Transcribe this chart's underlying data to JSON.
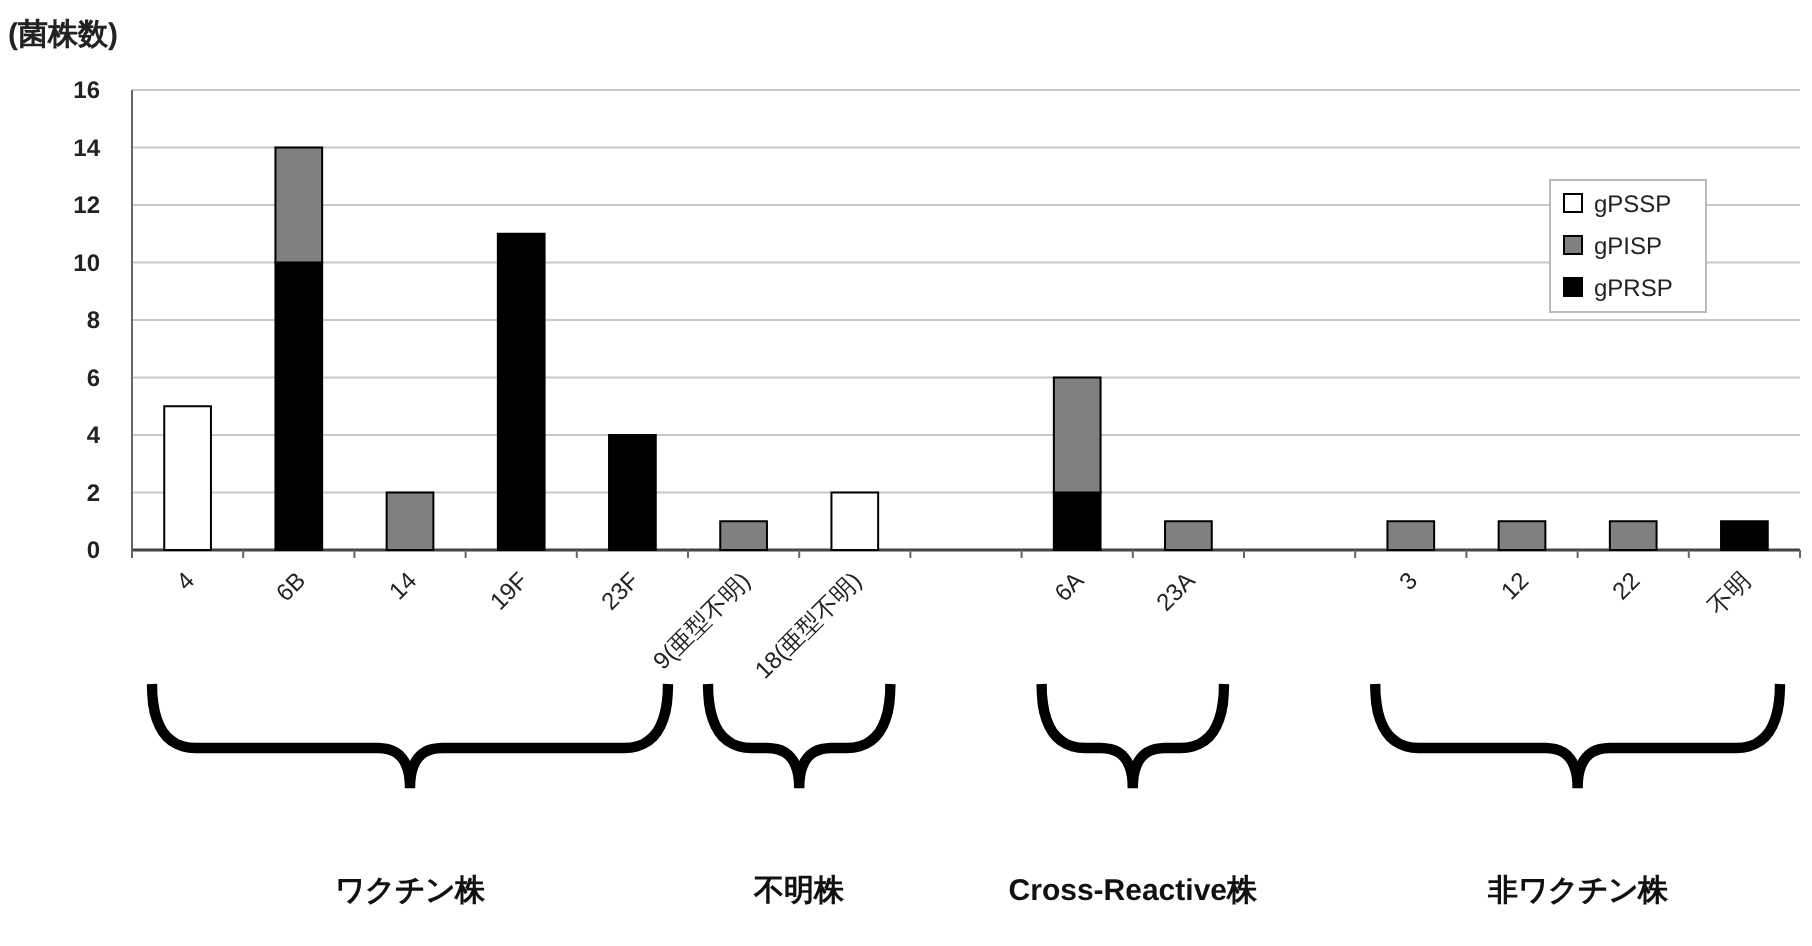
{
  "chart_data": {
    "type": "bar",
    "stacked": true,
    "ylabel": "(菌株数)",
    "categories": [
      "4",
      "6B",
      "14",
      "19F",
      "23F",
      "9(亜型不明)",
      "18(亜型不明)",
      null,
      "6A",
      "23A",
      null,
      "3",
      "12",
      "22",
      "不明"
    ],
    "series": [
      {
        "name": "gPRSP",
        "color": "#000000",
        "values": [
          null,
          10,
          null,
          11,
          4,
          null,
          null,
          null,
          2,
          null,
          null,
          null,
          null,
          null,
          1
        ]
      },
      {
        "name": "gPISP",
        "color": "#808080",
        "values": [
          null,
          4,
          2,
          null,
          null,
          1,
          null,
          null,
          4,
          1,
          null,
          1,
          1,
          1,
          null
        ]
      },
      {
        "name": "gPSSP",
        "color": "#ffffff",
        "values": [
          5,
          null,
          null,
          null,
          null,
          null,
          2,
          null,
          null,
          null,
          null,
          null,
          null,
          null,
          null
        ]
      }
    ],
    "ylim": [
      0,
      16
    ],
    "yticks": [
      0,
      2,
      4,
      6,
      8,
      10,
      12,
      14,
      16
    ],
    "grid": "y",
    "legend": "right",
    "annotations": [
      "ワクチン株",
      "不明株",
      "Cross-Reactive株",
      "非ワクチン株"
    ]
  }
}
